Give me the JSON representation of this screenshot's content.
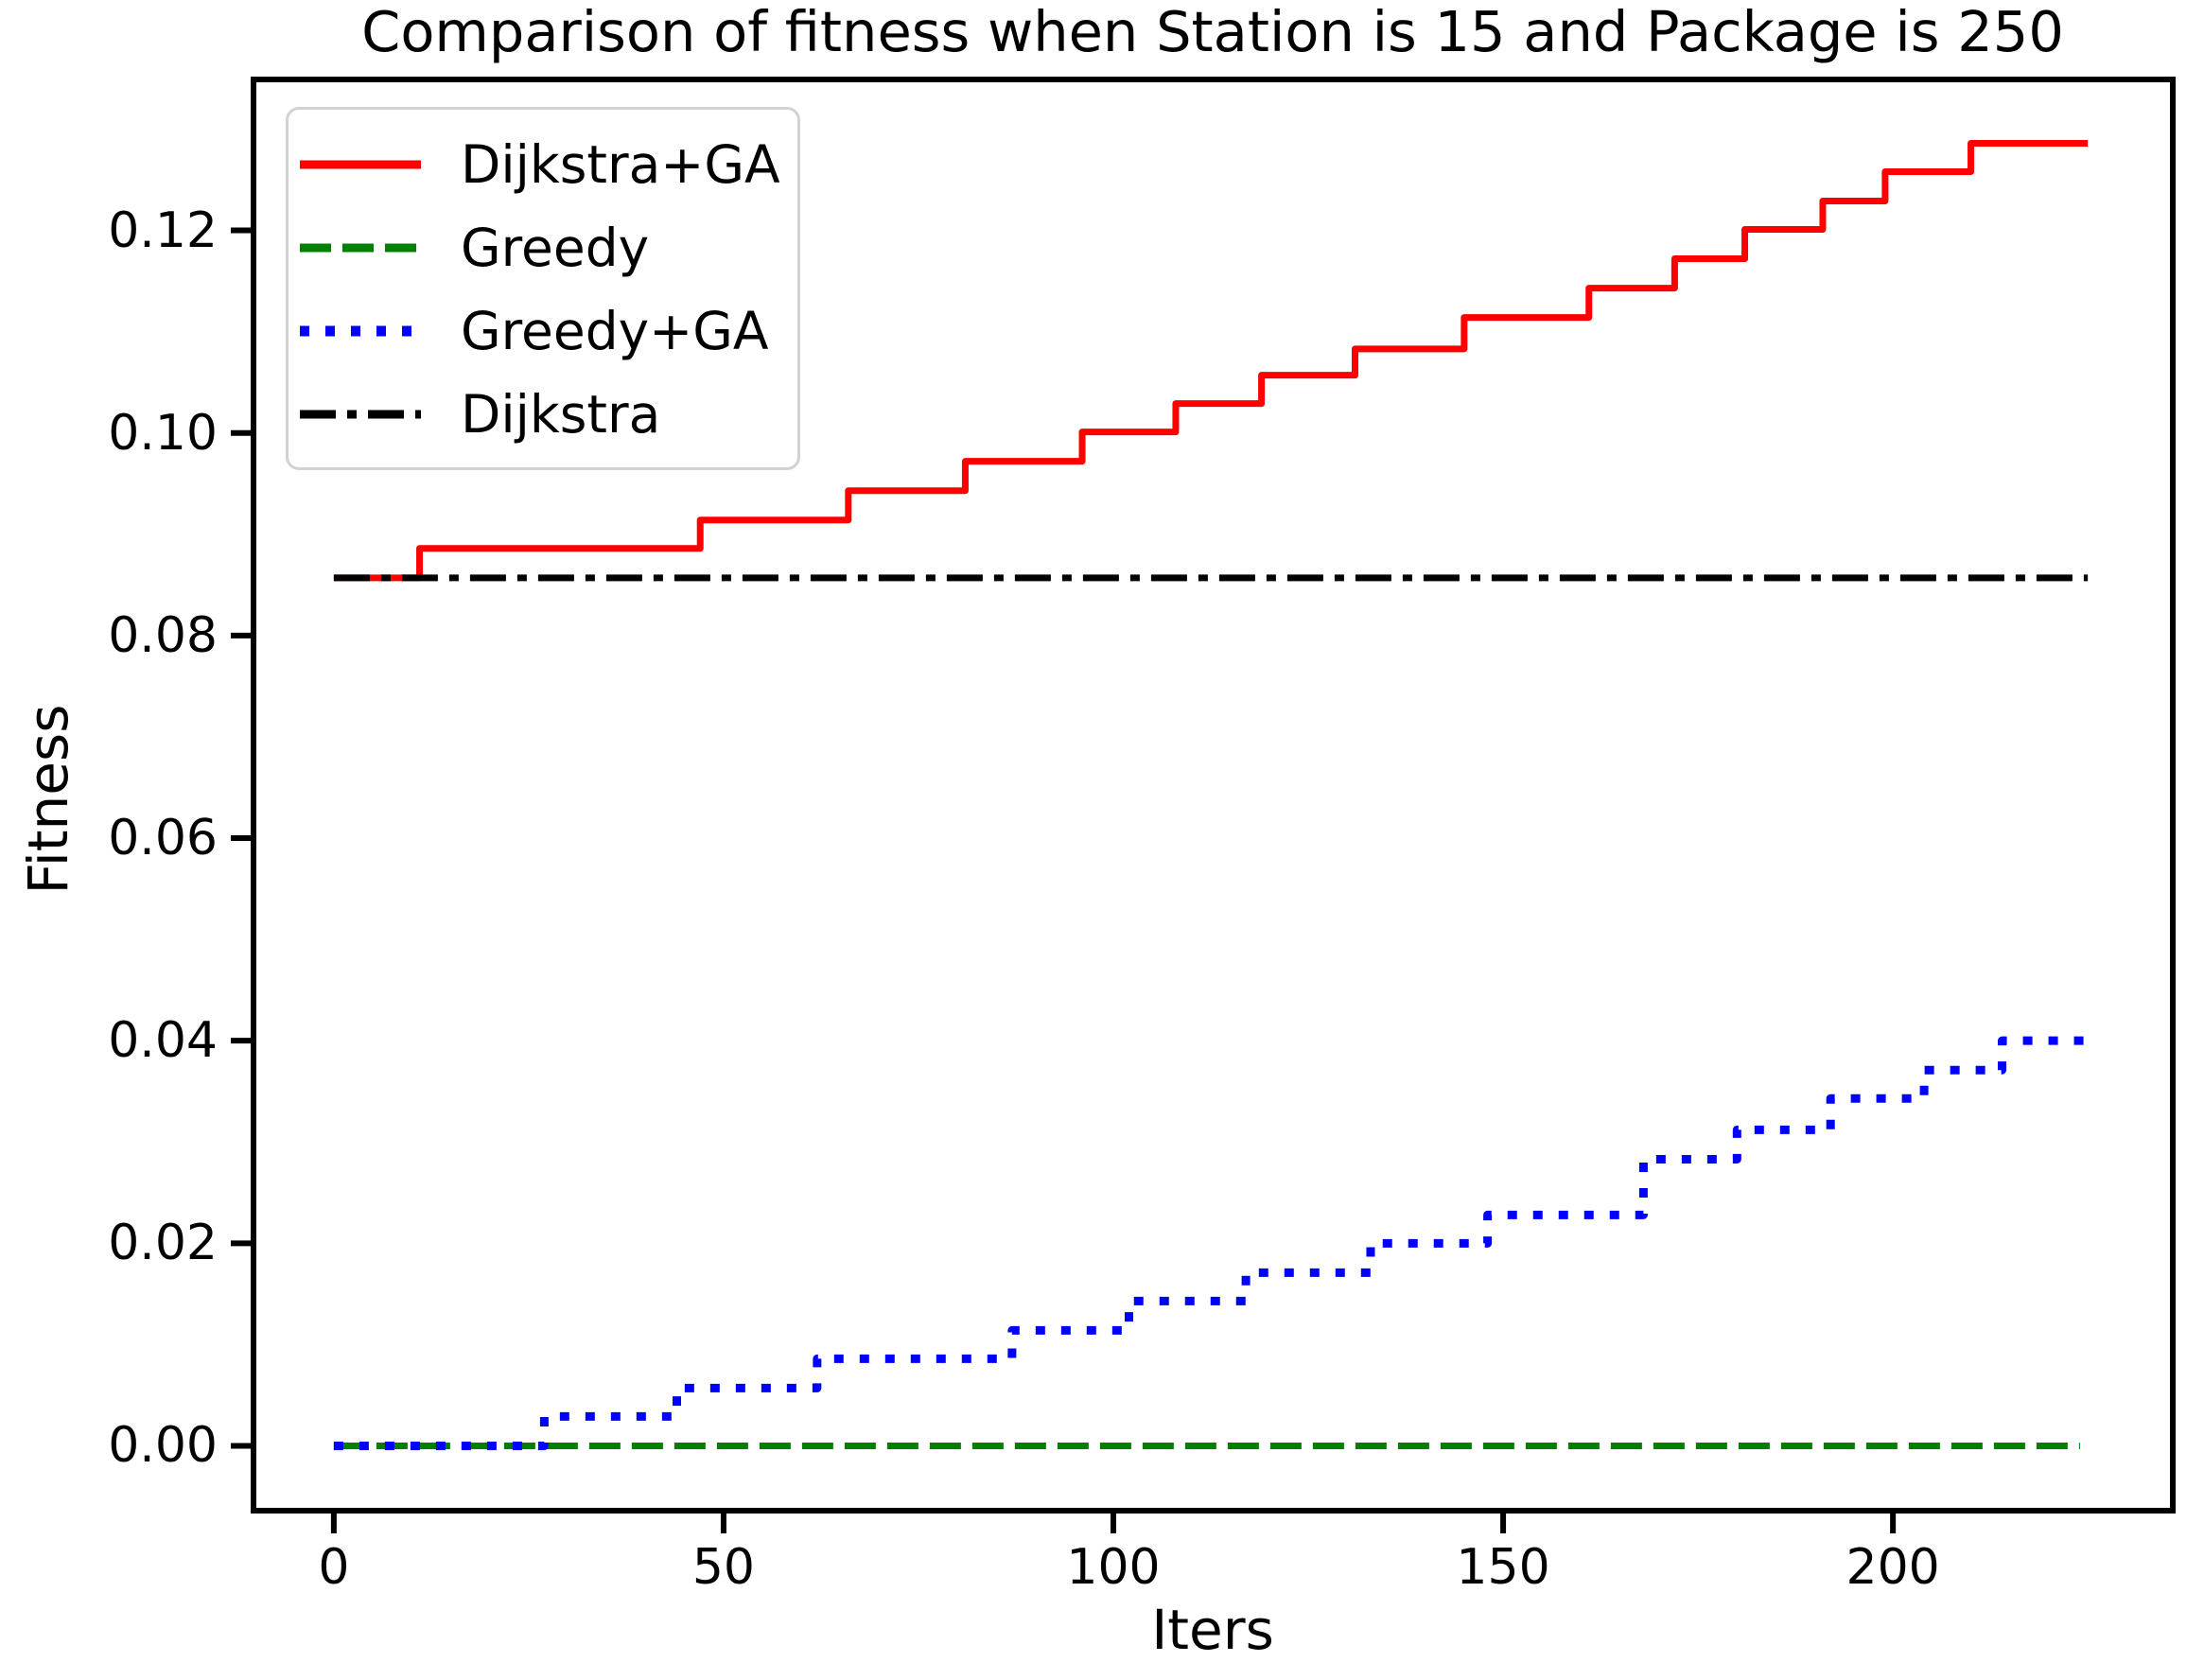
{
  "chart_data": {
    "type": "line",
    "title": "Comparison of fitness when Station is 15 and Package is 250",
    "xlabel": "Iters",
    "ylabel": "Fitness",
    "xlim": [
      -10.3,
      235.9
    ],
    "ylim": [
      -0.0064,
      0.1349
    ],
    "xticks": [
      0,
      50,
      100,
      150,
      200
    ],
    "yticks": [
      0.0,
      0.02,
      0.04,
      0.06,
      0.08,
      0.1,
      0.12
    ],
    "grid": false,
    "legend_position": "upper left",
    "series": [
      {
        "name": "Dijkstra+GA",
        "color": "#ff0000",
        "style": "solid",
        "interpolation": "step-after",
        "step_points": [
          [
            0,
            0.0857
          ],
          [
            11,
            0.0886
          ],
          [
            47,
            0.0914
          ],
          [
            66,
            0.0943
          ],
          [
            81,
            0.0972
          ],
          [
            96,
            0.1001
          ],
          [
            108,
            0.1029
          ],
          [
            119,
            0.1057
          ],
          [
            131,
            0.1083
          ],
          [
            145,
            0.1114
          ],
          [
            161,
            0.1143
          ],
          [
            172,
            0.1172
          ],
          [
            181,
            0.1201
          ],
          [
            191,
            0.1229
          ],
          [
            199,
            0.1258
          ],
          [
            210,
            0.1286
          ]
        ],
        "x_end": 225
      },
      {
        "name": "Greedy",
        "color": "#008000",
        "style": "dashed",
        "interpolation": "step-after",
        "step_points": [
          [
            0,
            0.0
          ]
        ],
        "x_end": 224
      },
      {
        "name": "Greedy+GA",
        "color": "#0000ff",
        "style": "dotted",
        "interpolation": "step-after",
        "step_points": [
          [
            0,
            0.0
          ],
          [
            27,
            0.0029
          ],
          [
            44,
            0.0057
          ],
          [
            62,
            0.0086
          ],
          [
            87,
            0.0114
          ],
          [
            102,
            0.0143
          ],
          [
            117,
            0.0171
          ],
          [
            133,
            0.02
          ],
          [
            148,
            0.0228
          ],
          [
            168,
            0.0283
          ],
          [
            180,
            0.0312
          ],
          [
            192,
            0.0343
          ],
          [
            204,
            0.0371
          ],
          [
            214,
            0.04
          ]
        ],
        "x_end": 225
      },
      {
        "name": "Dijkstra",
        "color": "#000000",
        "style": "dashdot",
        "interpolation": "step-after",
        "step_points": [
          [
            0,
            0.0857
          ]
        ],
        "x_end": 225
      }
    ]
  }
}
